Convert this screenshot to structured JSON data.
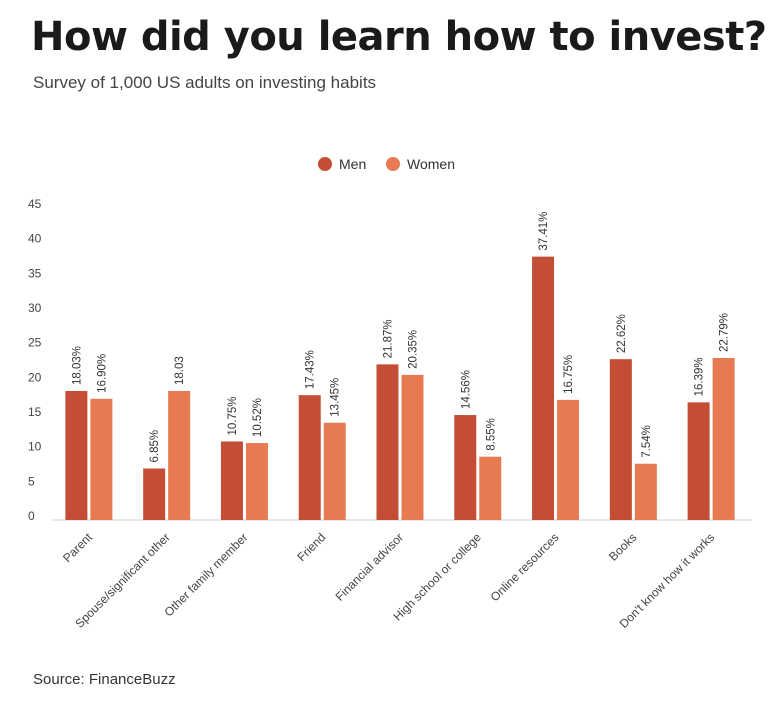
{
  "title": "How did you learn how to invest?",
  "subtitle": "Survey of 1,000 US adults on investing habits",
  "source": "Source: FinanceBuzz",
  "chart_data": {
    "type": "bar",
    "title": "",
    "xlabel": "",
    "ylabel": "",
    "ylim": [
      0,
      45
    ],
    "yticks": [
      0,
      5,
      10,
      15,
      20,
      25,
      30,
      35,
      40,
      45
    ],
    "grid": false,
    "legend": "top-center",
    "categories": [
      "Parent",
      "Spouse/significant other",
      "Other family member",
      "Friend",
      "Financial advisor",
      "High school or college",
      "Online resources",
      "Books",
      "Don't know how it works"
    ],
    "series": [
      {
        "name": "Men",
        "color": "#c44e35",
        "values": [
          18.03,
          6.85,
          10.75,
          17.43,
          21.87,
          14.56,
          37.41,
          22.62,
          16.39
        ],
        "labels": [
          "18.03%",
          "6.85%",
          "10.75%",
          "17.43%",
          "21.87%",
          "14.56%",
          "37.41%",
          "22.62%",
          "16.39%"
        ]
      },
      {
        "name": "Women",
        "color": "#e87a52",
        "values": [
          16.9,
          18.03,
          10.52,
          13.45,
          20.35,
          8.55,
          16.75,
          7.54,
          22.79
        ],
        "labels": [
          "16.90%",
          "18.03",
          "10.52%",
          "13.45%",
          "20.35%",
          "8.55%",
          "16.75%",
          "7.54%",
          "22.79%"
        ]
      }
    ]
  }
}
